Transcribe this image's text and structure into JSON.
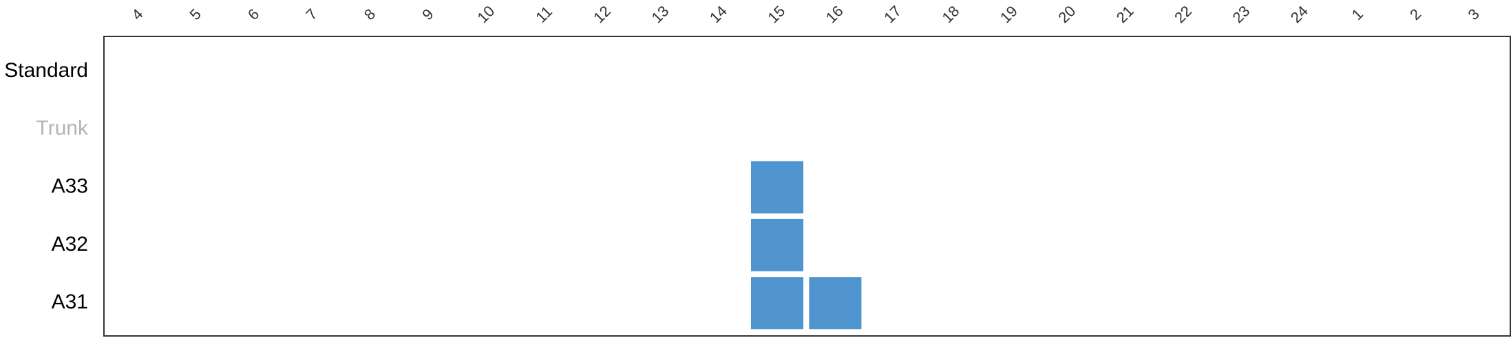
{
  "chart_data": {
    "type": "heatmap",
    "title": "",
    "xlabel": "",
    "ylabel": "",
    "columns": [
      "4",
      "5",
      "6",
      "7",
      "8",
      "9",
      "10",
      "11",
      "12",
      "13",
      "14",
      "15",
      "16",
      "17",
      "18",
      "19",
      "20",
      "21",
      "22",
      "23",
      "24",
      "1",
      "2",
      "3"
    ],
    "rows": [
      {
        "label": "Standard",
        "muted": false
      },
      {
        "label": "Trunk",
        "muted": true
      },
      {
        "label": "A33",
        "muted": false
      },
      {
        "label": "A32",
        "muted": false
      },
      {
        "label": "A31",
        "muted": false
      }
    ],
    "cells": [
      {
        "row": "A33",
        "column": "15",
        "active": true
      },
      {
        "row": "A32",
        "column": "15",
        "active": true
      },
      {
        "row": "A31",
        "column": "15",
        "active": true
      },
      {
        "row": "A31",
        "column": "16",
        "active": true
      }
    ],
    "colors": {
      "cell": "#4f94cf",
      "label": "#000000",
      "muted_label": "#b4b4b4",
      "column_label": "#333333",
      "frame": "#333333"
    },
    "grid": false,
    "legend": "none"
  }
}
